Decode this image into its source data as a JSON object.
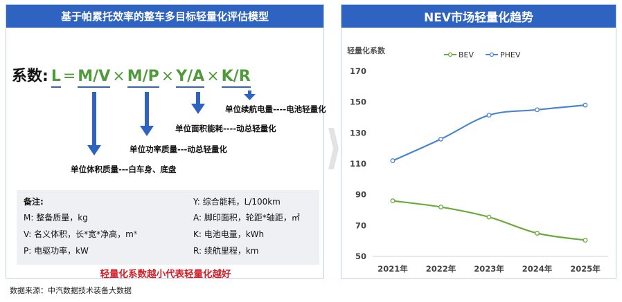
{
  "left": {
    "title": "基于帕累托效率的整车多目标轻量化评估模型",
    "formula": {
      "label": "系数:",
      "L": "L",
      "eq": "=",
      "mv": "M/V",
      "times": "×",
      "mp": "M/P",
      "ya": "Y/A",
      "kr": "K/R"
    },
    "annotations": {
      "mv": "单位体积质量---白车身、底盘",
      "mp": "单位功率质量---动总轻量化",
      "ya": "单位面积能耗----动总轻量化",
      "kr": "单位续航电量----电池轻量化"
    },
    "notes": {
      "title": "备注:",
      "items": [
        "M:  整备质量，kg",
        "V:  名义体积，长*宽*净高，m³",
        "P:  电驱功率，kW",
        "Y:  综合能耗，L/100km",
        "A:  脚印面积，轮距*轴距，㎡",
        "K:  电池电量，kWh",
        "R:  续航里程，km"
      ]
    },
    "conclusion": "轻量化系数越小代表轻量化越好"
  },
  "right": {
    "title": "NEV市场轻量化趋势"
  },
  "chart_data": {
    "type": "line",
    "title": "NEV市场轻量化趋势",
    "ylabel": "轻量化系数",
    "xlabel": "",
    "categories": [
      "2021年",
      "2022年",
      "2023年",
      "2024年",
      "2025年"
    ],
    "ylim": [
      50,
      170
    ],
    "yticks": [
      50,
      70,
      90,
      110,
      130,
      150,
      170
    ],
    "grid": false,
    "legend": "top",
    "series": [
      {
        "name": "BEV",
        "color": "#6aaa3a",
        "values": [
          86,
          82,
          75.5,
          65,
          60.5
        ]
      },
      {
        "name": "PHEV",
        "color": "#4a86d0",
        "values": [
          112,
          126,
          141.5,
          145,
          148
        ]
      }
    ]
  },
  "source": "数据来源：中汽数据技术装备大数据"
}
